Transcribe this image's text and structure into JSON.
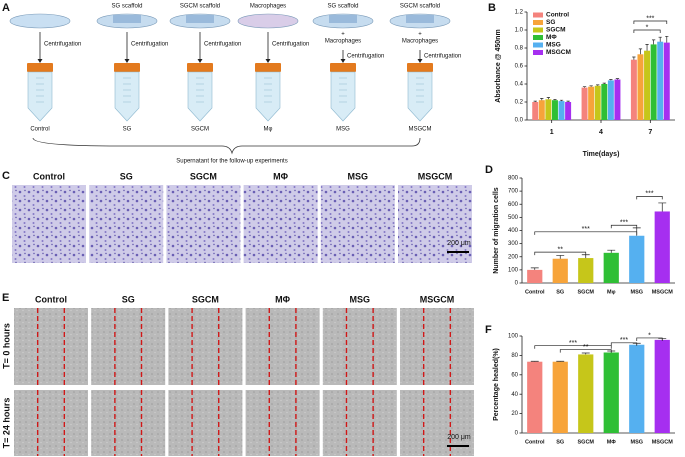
{
  "panel_labels": [
    "A",
    "B",
    "C",
    "D",
    "E",
    "F"
  ],
  "schematic": {
    "dish_labels": [
      [
        "SG scaffold"
      ],
      [
        "SGCM scaffold"
      ],
      [
        "Macrophages"
      ],
      [
        "SG scaffold",
        "+",
        "Macrophages"
      ],
      [
        "SGCM scaffold",
        "+",
        "Macrophages"
      ]
    ],
    "step": "Centrifugation",
    "tube_labels": [
      "Control",
      "SG",
      "SGCM",
      "Mφ",
      "MSG",
      "MSGCM"
    ],
    "note": "Supernatant for the follow-up experiments"
  },
  "micrograph_c": {
    "headers": [
      "Control",
      "SG",
      "SGCM",
      "MΦ",
      "MSG",
      "MSGCM"
    ],
    "scale": "200 μm"
  },
  "micrograph_e": {
    "headers": [
      "Control",
      "SG",
      "SGCM",
      "MΦ",
      "MSG",
      "MSGCM"
    ],
    "rows": [
      "T= 0 hours",
      "T= 24 hours"
    ],
    "scale": "200 μm"
  },
  "chart_data": [
    {
      "type": "bar",
      "xlabel": "Time(days)",
      "ylabel": "Absorbance @ 450nm",
      "categories": [
        "1",
        "4",
        "7"
      ],
      "series": [
        {
          "name": "Control",
          "color": "#f4837d",
          "values": [
            0.2,
            0.36,
            0.67
          ],
          "errors": [
            0.01,
            0.01,
            0.03
          ]
        },
        {
          "name": "SG",
          "color": "#f7a43a",
          "values": [
            0.22,
            0.37,
            0.73
          ],
          "errors": [
            0.02,
            0.01,
            0.06
          ]
        },
        {
          "name": "SGCM",
          "color": "#c6c61a",
          "values": [
            0.23,
            0.38,
            0.77
          ],
          "errors": [
            0.02,
            0.01,
            0.07
          ]
        },
        {
          "name": "MΦ",
          "color": "#2fbf35",
          "values": [
            0.22,
            0.4,
            0.84
          ],
          "errors": [
            0.01,
            0.01,
            0.05
          ]
        },
        {
          "name": "MSG",
          "color": "#55b0f0",
          "values": [
            0.21,
            0.44,
            0.87
          ],
          "errors": [
            0.01,
            0.01,
            0.05
          ]
        },
        {
          "name": "MSGCM",
          "color": "#a62ff0",
          "values": [
            0.2,
            0.45,
            0.86
          ],
          "errors": [
            0.01,
            0.01,
            0.07
          ]
        }
      ],
      "ylim": [
        0,
        1.2
      ],
      "yticks": [
        {
          "value": 0,
          "label": "0.0"
        },
        0.2,
        0.4,
        0.6,
        0.8,
        {
          "value": 1,
          "label": "1.0"
        },
        1.2
      ],
      "annotations": [
        "*",
        "***"
      ]
    },
    {
      "type": "bar",
      "ylabel": "Number of migration cells",
      "categories": [
        "Control",
        "SG",
        "SGCM",
        "Mφ",
        "MSG",
        "MSGCM"
      ],
      "values": [
        100,
        185,
        190,
        230,
        360,
        545
      ],
      "errors": [
        15,
        25,
        25,
        20,
        60,
        65
      ],
      "colors": [
        "#f4837d",
        "#f7a43a",
        "#c6c61a",
        "#2fbf35",
        "#55b0f0",
        "#a62ff0"
      ],
      "ylim": [
        0,
        800
      ],
      "yticks": [
        0,
        100,
        200,
        300,
        400,
        500,
        600,
        700,
        800
      ],
      "annotations": [
        "**",
        "***",
        "***",
        "***"
      ]
    },
    {
      "type": "bar",
      "ylabel": "Percentage healed(%)",
      "categories": [
        "Control",
        "SG",
        "SGCM",
        "MΦ",
        "MSG",
        "MSGCM"
      ],
      "values": [
        73.5,
        73.5,
        81,
        83,
        91,
        96
      ],
      "errors": [
        0.5,
        0.5,
        1.5,
        1.5,
        1.5,
        1.5
      ],
      "colors": [
        "#f4837d",
        "#f7a43a",
        "#c6c61a",
        "#2fbf35",
        "#55b0f0",
        "#a62ff0"
      ],
      "ylim": [
        0,
        100
      ],
      "yticks": [
        0,
        20,
        40,
        60,
        80,
        100
      ],
      "annotations": [
        "**",
        "***",
        "***",
        "*"
      ]
    }
  ]
}
